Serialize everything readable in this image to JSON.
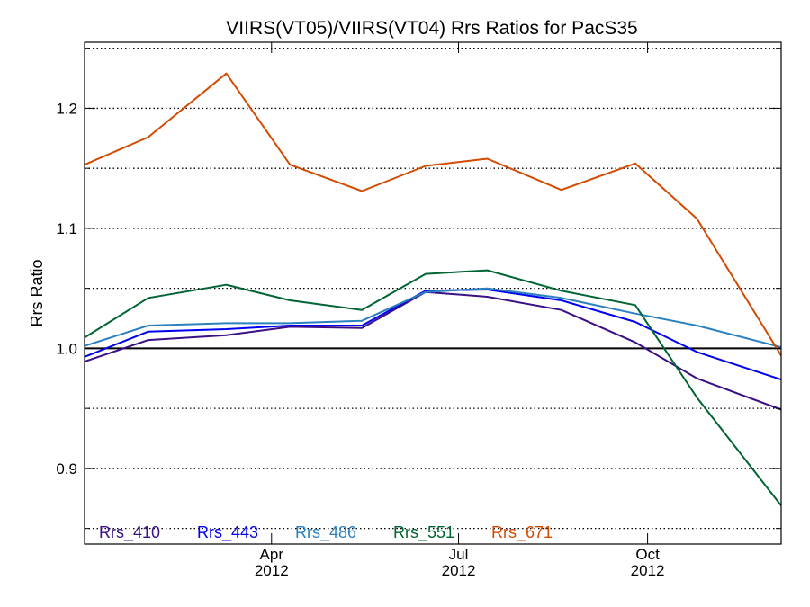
{
  "chart_data": {
    "type": "line",
    "title": "VIIRS(VT05)/VIIRS(VT04)  Rrs Ratios for PacS35",
    "xlabel": "",
    "ylabel": "Rrs Ratio",
    "x_ticks": [
      {
        "date": "2012-04-01",
        "month": "Apr",
        "year": "2012"
      },
      {
        "date": "2012-07-01",
        "month": "Jul",
        "year": "2012"
      },
      {
        "date": "2012-10-01",
        "month": "Oct",
        "year": "2012"
      }
    ],
    "xlim": [
      "2012-01-01",
      "2012-12-05"
    ],
    "ylim": [
      0.837,
      1.255
    ],
    "y_ticks": [
      0.9,
      1.0,
      1.1,
      1.2
    ],
    "y_tick_labels": [
      "0.9",
      "1.0",
      "1.1",
      "1.2"
    ],
    "grid": "dotted horizontal lines every 0.05",
    "reference_line": 1.0,
    "legend_position": "bottom",
    "x": [
      "2012-01-01",
      "2012-02-01",
      "2012-03-10",
      "2012-04-10",
      "2012-05-15",
      "2012-06-15",
      "2012-07-15",
      "2012-08-20",
      "2012-09-25",
      "2012-10-25",
      "2012-12-05"
    ],
    "series": [
      {
        "name": "Rrs_410",
        "color": "#3b0f86",
        "values": [
          0.989,
          1.007,
          1.011,
          1.018,
          1.017,
          1.047,
          1.043,
          1.032,
          1.005,
          0.975,
          0.949
        ]
      },
      {
        "name": "Rrs_443",
        "color": "#0000ee",
        "values": [
          0.993,
          1.014,
          1.016,
          1.019,
          1.019,
          1.048,
          1.049,
          1.04,
          1.022,
          0.997,
          0.974
        ]
      },
      {
        "name": "Rrs_486",
        "color": "#2b80c0",
        "values": [
          1.002,
          1.019,
          1.021,
          1.021,
          1.023,
          1.047,
          1.05,
          1.042,
          1.029,
          1.019,
          1.001
        ]
      },
      {
        "name": "Rrs_551",
        "color": "#006433",
        "values": [
          1.009,
          1.042,
          1.053,
          1.04,
          1.032,
          1.062,
          1.065,
          1.048,
          1.036,
          0.959,
          0.869
        ]
      },
      {
        "name": "Rrs_671",
        "color": "#d44a00",
        "values": [
          1.153,
          1.176,
          1.229,
          1.153,
          1.131,
          1.152,
          1.158,
          1.132,
          1.154,
          1.108,
          0.994
        ]
      }
    ]
  }
}
